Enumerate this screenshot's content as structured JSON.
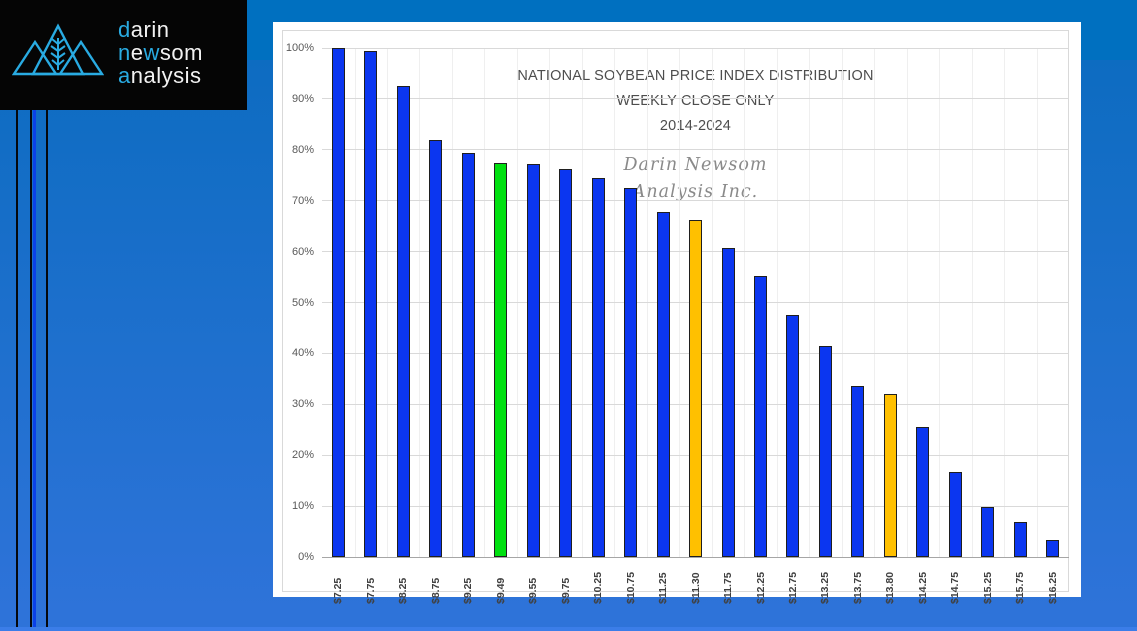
{
  "logo": {
    "accent_color": "#29abe2",
    "words": [
      {
        "text": "darin",
        "highlight_indices": [
          0
        ]
      },
      {
        "text": "newsom",
        "highlight_indices": [
          0,
          2
        ]
      },
      {
        "text": "analysis",
        "highlight_indices": [
          0
        ]
      }
    ],
    "icon": "mountains-wheat-icon"
  },
  "chart_data": {
    "type": "bar",
    "title_lines": [
      "NATIONAL SOYBEAN PRICE INDEX DISTRIBUTION",
      "WEEKLY CLOSE ONLY",
      "2014-2024"
    ],
    "watermark_lines": [
      "Darin Newsom",
      "Analysis Inc."
    ],
    "categories": [
      "$7.25",
      "$7.75",
      "$8.25",
      "$8.75",
      "$9.25",
      "$9.49",
      "$9.55",
      "$9.75",
      "$10.25",
      "$10.75",
      "$11.25",
      "$11.30",
      "$11.75",
      "$12.25",
      "$12.75",
      "$13.25",
      "$13.75",
      "$13.80",
      "$14.25",
      "$14.75",
      "$15.25",
      "$15.75",
      "$16.25"
    ],
    "values": [
      100,
      99.5,
      92.5,
      82,
      79.3,
      77.5,
      77.2,
      76.3,
      74.5,
      72.5,
      67.7,
      66.2,
      60.8,
      55.2,
      47.5,
      41.4,
      33.7,
      32.1,
      25.6,
      16.8,
      9.8,
      6.9,
      3.3
    ],
    "bar_colors": [
      "#0b36f0",
      "#0b36f0",
      "#0b36f0",
      "#0b36f0",
      "#0b36f0",
      "#00e010",
      "#0b36f0",
      "#0b36f0",
      "#0b36f0",
      "#0b36f0",
      "#0b36f0",
      "#ffc000",
      "#0b36f0",
      "#0b36f0",
      "#0b36f0",
      "#0b36f0",
      "#0b36f0",
      "#ffc000",
      "#0b36f0",
      "#0b36f0",
      "#0b36f0",
      "#0b36f0",
      "#0b36f0"
    ],
    "color_legend": {
      "default": "#0b36f0",
      "highlight_green": "#00e010",
      "highlight_gold": "#ffc000"
    },
    "xlabel": "",
    "ylabel": "",
    "ylim": [
      0,
      100
    ],
    "ytick_labels": [
      "0%",
      "10%",
      "20%",
      "30%",
      "40%",
      "50%",
      "60%",
      "70%",
      "80%",
      "90%",
      "100%"
    ],
    "grid": true,
    "legend": "none"
  }
}
